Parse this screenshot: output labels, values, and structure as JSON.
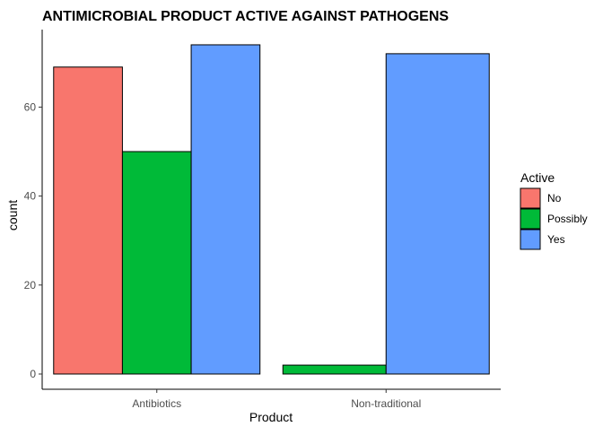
{
  "chart_data": {
    "type": "bar",
    "title": "ANTIMICROBIAL PRODUCT ACTIVE AGAINST PATHOGENS",
    "xlabel": "Product",
    "ylabel": "count",
    "categories": [
      "Antibiotics",
      "Non-traditional"
    ],
    "series": [
      {
        "name": "No",
        "color": "#F8766D",
        "values": [
          69,
          0
        ]
      },
      {
        "name": "Possibly",
        "color": "#00BA38",
        "values": [
          50,
          2
        ]
      },
      {
        "name": "Yes",
        "color": "#619CFF",
        "values": [
          74,
          72
        ]
      }
    ],
    "ylim": [
      0,
      76
    ],
    "yticks": [
      0,
      20,
      40,
      60
    ],
    "legend": {
      "title": "Active",
      "placement": "right"
    },
    "grid": false
  }
}
